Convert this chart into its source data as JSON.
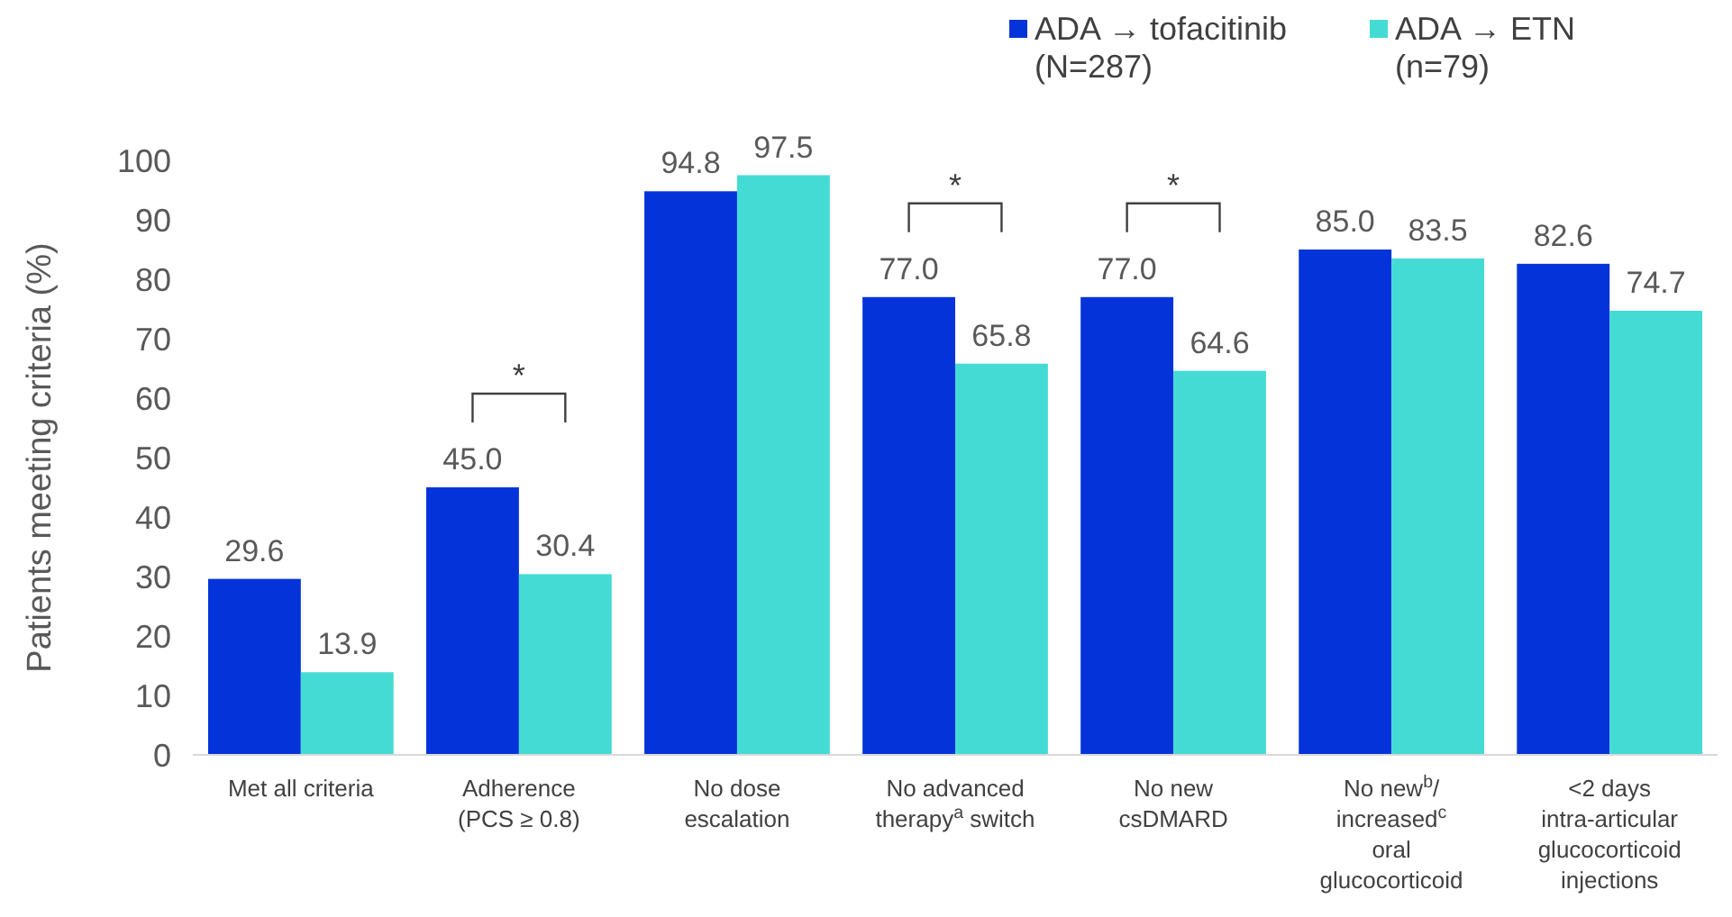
{
  "chart_data": {
    "type": "bar",
    "ylabel": "Patients meeting criteria (%)",
    "categories": [
      "Met all criteria",
      "Adherence\n(PCS ≥ 0.8)",
      "No dose\nescalation",
      "No advanced\ntherapy$^{a}$ switch",
      "No new\ncsDMARD",
      "No new$^{b}$/\nincreased$^{c}$\noral\nglucocorticoid",
      "<2 days\nintra-articular\nglucocorticoid\ninjections"
    ],
    "series": [
      {
        "name": "ADA → tofacitinib\n(N=287)",
        "color": "#0433d9",
        "values": [
          29.6,
          45.0,
          94.8,
          77.0,
          77.0,
          85.0,
          82.6
        ],
        "value_labels": [
          "29.6",
          "45.0",
          "94.8",
          "77.0",
          "77.0",
          "85.0",
          "82.6"
        ]
      },
      {
        "name": "ADA → ETN\n(n=79)",
        "color": "#45dbd5",
        "values": [
          13.9,
          30.4,
          97.5,
          65.8,
          64.6,
          83.5,
          74.7
        ],
        "value_labels": [
          "13.9",
          "30.4",
          "97.5",
          "65.8",
          "64.6",
          "83.5",
          "74.7"
        ]
      }
    ],
    "ylim": [
      0,
      100
    ],
    "yticks": [
      0,
      10,
      20,
      30,
      40,
      50,
      60,
      70,
      80,
      90,
      100
    ],
    "grid": false,
    "legend": "top right",
    "annotations": [
      "*",
      "*",
      "*"
    ]
  }
}
